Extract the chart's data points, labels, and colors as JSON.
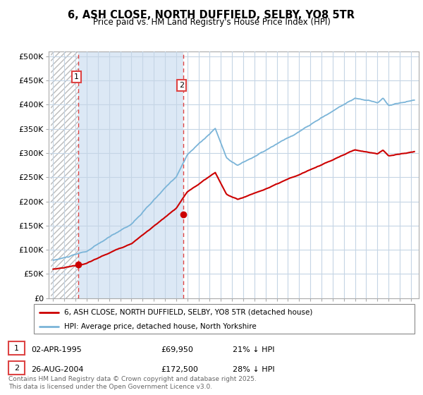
{
  "title": "6, ASH CLOSE, NORTH DUFFIELD, SELBY, YO8 5TR",
  "subtitle": "Price paid vs. HM Land Registry's House Price Index (HPI)",
  "ylabel_ticks": [
    "£0",
    "£50K",
    "£100K",
    "£150K",
    "£200K",
    "£250K",
    "£300K",
    "£350K",
    "£400K",
    "£450K",
    "£500K"
  ],
  "ytick_vals": [
    0,
    50000,
    100000,
    150000,
    200000,
    250000,
    300000,
    350000,
    400000,
    450000,
    500000
  ],
  "ylim": [
    0,
    510000
  ],
  "hpi_color": "#7ab4d8",
  "price_color": "#cc0000",
  "vline_color": "#dd4444",
  "marker1_year": 1995.25,
  "marker2_year": 2004.65,
  "hatch_bg_color": "#e8e8e8",
  "light_blue_fill": "#ddeeff",
  "grid_color": "#c8d8e8",
  "legend_label_price": "6, ASH CLOSE, NORTH DUFFIELD, SELBY, YO8 5TR (detached house)",
  "legend_label_hpi": "HPI: Average price, detached house, North Yorkshire",
  "footer": "Contains HM Land Registry data © Crown copyright and database right 2025.\nThis data is licensed under the Open Government Licence v3.0."
}
